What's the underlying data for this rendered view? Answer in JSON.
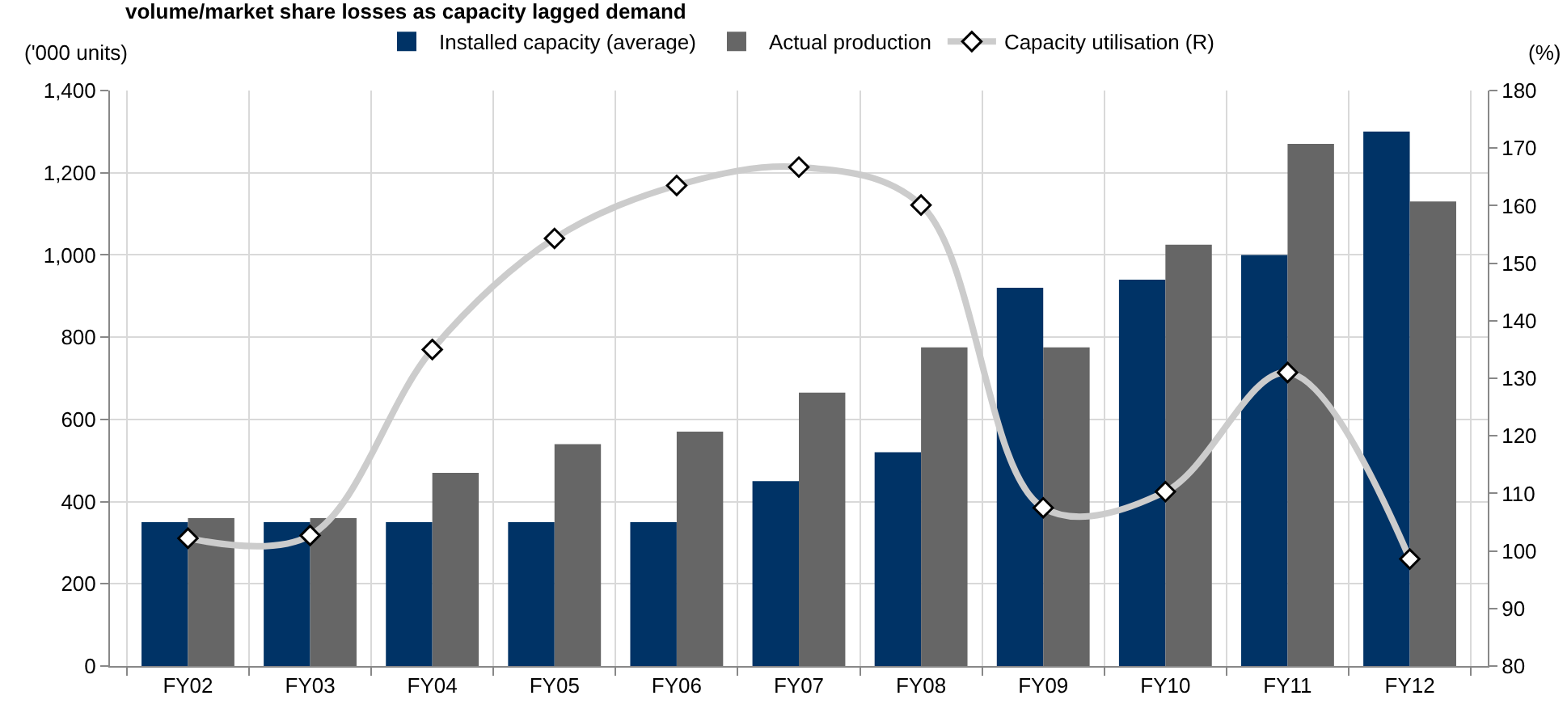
{
  "chart_data": {
    "type": "bar",
    "title": "volume/market share losses as capacity lagged demand",
    "categories": [
      "FY02",
      "FY03",
      "FY04",
      "FY05",
      "FY06",
      "FY07",
      "FY08",
      "FY09",
      "FY10",
      "FY11",
      "FY12"
    ],
    "series": [
      {
        "name": "Installed capacity (average)",
        "color": "#003366",
        "values": [
          350,
          350,
          350,
          350,
          350,
          450,
          520,
          920,
          940,
          1000,
          1300
        ]
      },
      {
        "name": "Actual production",
        "color": "#666666",
        "values": [
          360,
          360,
          470,
          540,
          570,
          665,
          775,
          775,
          1025,
          1270,
          1130
        ]
      },
      {
        "name": "Capacity utilisation (R)",
        "type": "line",
        "axis": "y2",
        "color": "#cccccc",
        "marker": "diamond",
        "line_style": "solid",
        "values": [
          102.2,
          102.7,
          135,
          154.3,
          163.5,
          166.7,
          160.1,
          107.5,
          110.3,
          131,
          98.6
        ]
      }
    ],
    "ylabel": "('000 units)",
    "y2label": "(%)",
    "ylim": [
      0,
      1400
    ],
    "yticks": [
      0,
      {
        "value": 200,
        "label": "200"
      },
      {
        "value": 400,
        "label": "400"
      },
      {
        "value": 600,
        "label": "600"
      },
      {
        "value": 800,
        "label": "800"
      },
      {
        "value": 1000,
        "label": "1,000"
      },
      {
        "value": 1200,
        "label": "1,200"
      },
      {
        "value": 1400,
        "label": "1,400"
      }
    ],
    "y2lim": [
      80,
      180
    ],
    "y2ticks": [
      80,
      90,
      100,
      110,
      120,
      130,
      140,
      150,
      160,
      170,
      180
    ],
    "grid": true,
    "legend": "top"
  }
}
